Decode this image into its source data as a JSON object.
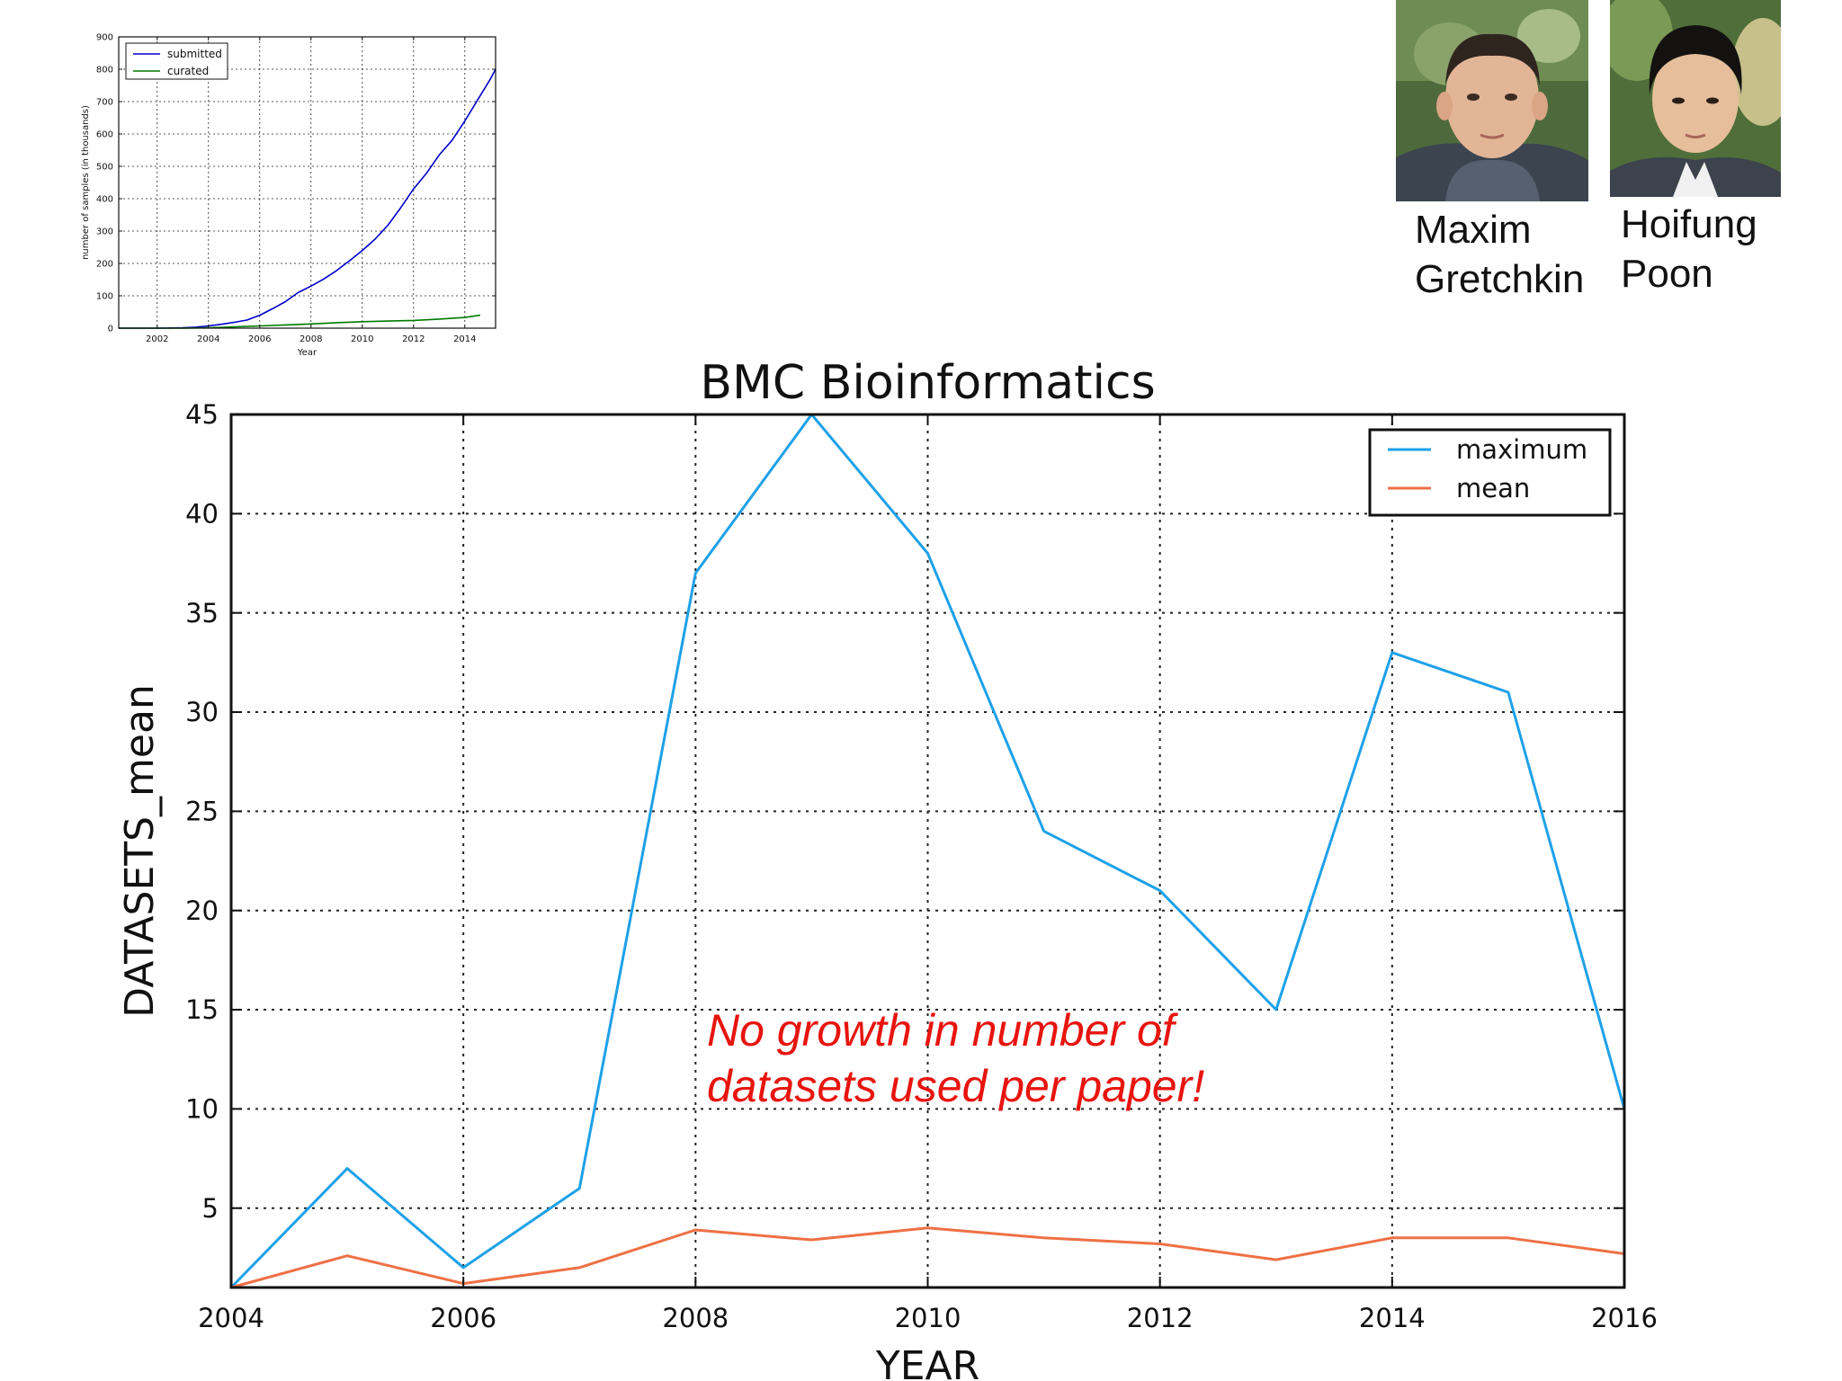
{
  "people": [
    {
      "name_line1": "Maxim",
      "name_line2": "Gretchkin"
    },
    {
      "name_line1": "Hoifung",
      "name_line2": "Poon"
    }
  ],
  "annotation": {
    "line1": "No growth in number of",
    "line2": "datasets used per paper!",
    "color": "#e8140e"
  },
  "chart_data": [
    {
      "type": "line",
      "title": "",
      "xlabel": "Year",
      "ylabel": "number of samples (in thousands)",
      "xlim": [
        2000.5,
        2015.2
      ],
      "ylim": [
        0,
        900
      ],
      "xticks": [
        2002,
        2004,
        2006,
        2008,
        2010,
        2012,
        2014
      ],
      "yticks": [
        0,
        100,
        200,
        300,
        400,
        500,
        600,
        700,
        800,
        900
      ],
      "grid": true,
      "legend": "top-left",
      "series": [
        {
          "name": "submitted",
          "color": "#0000cc",
          "x": [
            2000.5,
            2002,
            2003,
            2003.5,
            2004,
            2004.5,
            2005,
            2005.5,
            2006,
            2006.5,
            2007,
            2007.5,
            2008,
            2008.5,
            2009,
            2009.5,
            2010,
            2010.5,
            2011,
            2011.5,
            2012,
            2012.5,
            2013,
            2013.5,
            2014,
            2014.5,
            2015,
            2015.2
          ],
          "values": [
            0,
            0,
            1,
            3,
            7,
            12,
            18,
            25,
            40,
            60,
            82,
            110,
            130,
            152,
            178,
            208,
            240,
            275,
            318,
            372,
            430,
            478,
            535,
            580,
            640,
            705,
            770,
            800
          ]
        },
        {
          "name": "curated",
          "color": "#007a00",
          "x": [
            2000.5,
            2003,
            2004,
            2005,
            2006,
            2007,
            2008,
            2009,
            2010,
            2011,
            2012,
            2013,
            2014,
            2014.6
          ],
          "values": [
            0,
            0,
            1,
            4,
            7,
            10,
            13,
            17,
            20,
            22,
            24,
            28,
            33,
            40
          ]
        }
      ]
    },
    {
      "type": "line",
      "title": "BMC Bioinformatics",
      "xlabel": "YEAR",
      "ylabel": "DATASETS_mean",
      "xlim": [
        2004,
        2016
      ],
      "ylim": [
        1,
        45
      ],
      "xticks": [
        2004,
        2006,
        2008,
        2010,
        2012,
        2014,
        2016
      ],
      "yticks": [
        5,
        10,
        15,
        20,
        25,
        30,
        35,
        40,
        45
      ],
      "grid": true,
      "legend": "top-right",
      "series": [
        {
          "name": "maximum",
          "color": "#1ea1e8",
          "x": [
            2004,
            2005,
            2006,
            2007,
            2008,
            2009,
            2010,
            2011,
            2012,
            2013,
            2014,
            2015,
            2016
          ],
          "values": [
            1,
            7,
            2,
            6,
            37,
            45,
            38,
            24,
            21,
            15,
            33,
            31,
            10
          ]
        },
        {
          "name": "mean",
          "color": "#ee7045",
          "x": [
            2004,
            2005,
            2006,
            2007,
            2008,
            2009,
            2010,
            2011,
            2012,
            2013,
            2014,
            2015,
            2016
          ],
          "values": [
            1.0,
            2.6,
            1.2,
            2.0,
            3.9,
            3.4,
            4.0,
            3.5,
            3.2,
            2.4,
            3.5,
            3.5,
            2.7
          ]
        }
      ]
    }
  ]
}
